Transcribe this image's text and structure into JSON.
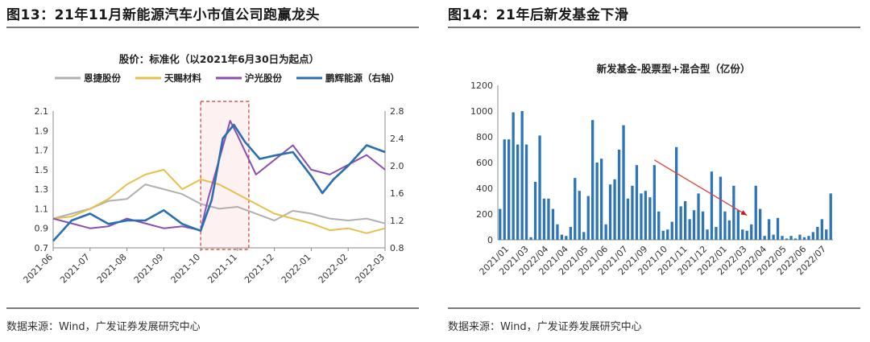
{
  "left": {
    "figure_title": "图13：21年11月新能源汽车小市值公司跑赢龙头",
    "source": "数据来源：Wind，广发证券发展研究中心"
  },
  "right": {
    "figure_title": "图14：21年后新发基金下滑",
    "source": "数据来源：Wind，广发证券发展研究中心"
  },
  "chart_data": [
    {
      "type": "line",
      "title": "股价：标准化（以2021年6月30日为起点）",
      "x_ticks": [
        "2021-06",
        "2021-07",
        "2021-08",
        "2021-09",
        "2021-10",
        "2021-11",
        "2021-12",
        "2022-01",
        "2022-02",
        "2022-03"
      ],
      "ylim_left": [
        0.7,
        2.1
      ],
      "yticks_left": [
        "0.7",
        "0.9",
        "1.1",
        "1.3",
        "1.5",
        "1.7",
        "1.9",
        "2.1"
      ],
      "ylim_right": [
        0.8,
        2.8
      ],
      "yticks_right": [
        "0.8",
        "1.2",
        "1.6",
        "2.0",
        "2.4",
        "2.8"
      ],
      "highlight_range": [
        "2021-10",
        "2021-11"
      ],
      "legend_position": "top",
      "series": [
        {
          "name": "恩捷股份",
          "axis": "left",
          "color": "#b0b0b0",
          "x": [
            0,
            0.5,
            1,
            1.5,
            2,
            2.5,
            3,
            3.5,
            4,
            4.5,
            5,
            5.5,
            6,
            6.5,
            7,
            7.5,
            8,
            8.5,
            9
          ],
          "values": [
            1.0,
            1.05,
            1.1,
            1.18,
            1.2,
            1.35,
            1.3,
            1.25,
            1.15,
            1.1,
            1.12,
            1.05,
            0.98,
            1.08,
            1.05,
            1.0,
            0.98,
            1.0,
            0.95
          ]
        },
        {
          "name": "天赐材料",
          "axis": "left",
          "color": "#e6c04a",
          "x": [
            0,
            0.5,
            1,
            1.5,
            2,
            2.5,
            3,
            3.5,
            4,
            4.5,
            5,
            5.5,
            6,
            6.5,
            7,
            7.5,
            8,
            8.5,
            9
          ],
          "values": [
            1.0,
            1.02,
            1.1,
            1.2,
            1.35,
            1.45,
            1.5,
            1.3,
            1.4,
            1.35,
            1.25,
            1.15,
            1.05,
            1.0,
            0.95,
            0.88,
            0.9,
            0.85,
            0.9
          ]
        },
        {
          "name": "沪光股份",
          "axis": "left",
          "color": "#8a4fb0",
          "x": [
            0,
            0.5,
            1,
            1.5,
            2,
            2.5,
            3,
            3.5,
            4,
            4.2,
            4.5,
            4.8,
            5,
            5.5,
            6,
            6.5,
            7,
            7.5,
            8,
            8.5,
            9
          ],
          "values": [
            1.0,
            0.95,
            0.9,
            0.92,
            1.0,
            0.95,
            0.9,
            0.92,
            0.88,
            1.2,
            1.6,
            2.0,
            1.85,
            1.45,
            1.6,
            1.75,
            1.5,
            1.45,
            1.55,
            1.65,
            1.5
          ]
        },
        {
          "name": "鹏辉能源（右轴）",
          "axis": "right",
          "color": "#2a6fb0",
          "x": [
            0,
            0.5,
            1,
            1.5,
            2,
            2.5,
            3,
            3.5,
            4,
            4.3,
            4.6,
            4.9,
            5.2,
            5.6,
            6,
            6.5,
            7,
            7.3,
            7.6,
            8,
            8.5,
            9
          ],
          "values": [
            0.9,
            1.2,
            1.3,
            1.15,
            1.2,
            1.2,
            1.35,
            1.15,
            1.05,
            1.5,
            2.4,
            2.6,
            2.35,
            2.1,
            2.15,
            2.2,
            1.85,
            1.6,
            1.8,
            2.0,
            2.3,
            2.2
          ]
        }
      ]
    },
    {
      "type": "bar",
      "title": "新发基金-股票型+混合型（亿份）",
      "ylim": [
        0,
        1200
      ],
      "yticks": [
        "0",
        "200",
        "400",
        "600",
        "800",
        "1000",
        "1200"
      ],
      "x_ticks": [
        "2021/01",
        "2021/03",
        "2022/04",
        "2021/04",
        "2021/05",
        "2021/06",
        "2021/07",
        "2021/09",
        "2021/10",
        "2021/11",
        "2021/12",
        "2022/01",
        "2022/03",
        "2022/04",
        "2022/05",
        "2022/06",
        "2022/07"
      ],
      "color": "#2e75b6",
      "series": [
        {
          "values": [
            240,
            780,
            780,
            990,
            740,
            1000,
            740,
            20,
            450,
            810,
            320,
            320,
            240,
            120,
            40,
            30,
            100,
            480,
            380,
            60,
            340,
            930,
            600,
            630,
            120,
            430,
            470,
            700,
            890,
            320,
            420,
            580,
            360,
            380,
            330,
            580,
            220,
            70,
            80,
            140,
            720,
            260,
            300,
            160,
            230,
            360,
            220,
            80,
            530,
            100,
            490,
            220,
            150,
            420,
            230,
            80,
            70,
            120,
            420,
            240,
            30,
            160,
            40,
            170,
            30,
            10,
            30,
            10,
            40,
            20,
            30,
            60,
            100,
            160,
            80,
            360
          ]
        }
      ],
      "annotation": "downward trend arrow"
    }
  ]
}
